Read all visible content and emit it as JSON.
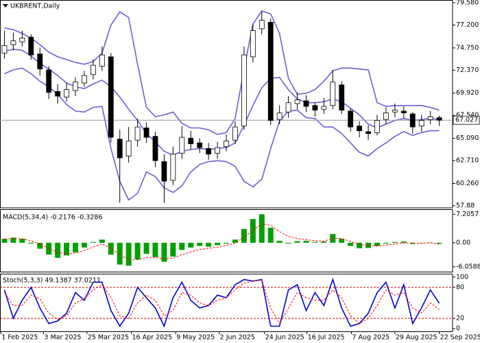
{
  "chart_data": [
    {
      "type": "candlestick",
      "title": "UKBRENT,Daily",
      "open": [
        74.2,
        75.1,
        75.4,
        75.9,
        74.1,
        72.4,
        70.1,
        69.5,
        70.2,
        71.0,
        71.9,
        72.8,
        73.8,
        65.0,
        63.2,
        64.9,
        66.2,
        65.3,
        62.6,
        60.6,
        63.5,
        65.1,
        64.6,
        64.0,
        63.5,
        64.2,
        64.9,
        66.4,
        73.8,
        76.8,
        77.5,
        67.1,
        67.9,
        68.8,
        69.1,
        68.6,
        68.2,
        68.6,
        70.8,
        68.0,
        66.4,
        65.8,
        65.7,
        67.1,
        67.9,
        68.0,
        67.7,
        66.4,
        67.1,
        67.3
      ],
      "high": [
        76.6,
        76.4,
        76.6,
        76.2,
        74.8,
        72.8,
        70.9,
        71.0,
        71.6,
        72.3,
        73.5,
        74.9,
        74.2,
        66.0,
        66.3,
        67.2,
        66.8,
        65.8,
        63.4,
        64.2,
        66.4,
        65.9,
        65.1,
        64.6,
        64.7,
        65.5,
        66.9,
        74.9,
        77.3,
        78.6,
        77.9,
        68.6,
        69.6,
        70.0,
        69.7,
        68.9,
        69.4,
        72.4,
        71.2,
        68.3,
        66.9,
        66.5,
        67.6,
        68.4,
        68.8,
        68.5,
        67.9,
        67.6,
        68.0,
        67.5
      ],
      "low": [
        73.6,
        74.5,
        74.9,
        73.5,
        71.8,
        69.3,
        68.8,
        69.0,
        69.6,
        70.6,
        71.4,
        72.3,
        64.6,
        58.2,
        62.5,
        64.2,
        64.6,
        62.0,
        58.2,
        60.1,
        62.9,
        63.9,
        63.5,
        62.8,
        62.9,
        63.7,
        64.5,
        66.0,
        73.2,
        76.2,
        66.5,
        66.6,
        67.3,
        68.2,
        67.9,
        67.4,
        67.7,
        68.2,
        67.7,
        65.8,
        65.2,
        64.9,
        65.4,
        66.6,
        67.3,
        67.2,
        65.6,
        65.8,
        66.6,
        66.4
      ],
      "close": [
        75.0,
        75.5,
        75.8,
        74.0,
        72.5,
        70.0,
        69.6,
        70.3,
        71.1,
        71.8,
        72.9,
        74.0,
        65.2,
        63.0,
        64.8,
        66.3,
        65.2,
        62.7,
        60.5,
        63.4,
        65.2,
        64.5,
        64.1,
        63.4,
        64.1,
        64.8,
        66.3,
        74.0,
        76.6,
        77.7,
        67.0,
        67.8,
        68.9,
        69.2,
        68.5,
        68.1,
        68.5,
        71.1,
        68.1,
        66.3,
        65.9,
        65.6,
        67.0,
        67.8,
        68.1,
        67.8,
        66.3,
        67.0,
        67.4,
        67.027
      ],
      "bands": [
        {
          "color": "#6a5fd6",
          "values": [
            76.9,
            76.7,
            76.3,
            75.8,
            75.1,
            74.3,
            73.8,
            73.5,
            73.2,
            73.0,
            73.3,
            74.2,
            77.2,
            78.6,
            78.0,
            73.0,
            68.4,
            67.4,
            67.6,
            67.9,
            66.7,
            66.2,
            66.2,
            66.0,
            65.5,
            65.7,
            67.2,
            72.5,
            77.3,
            78.7,
            78.4,
            76.3,
            71.5,
            69.8,
            69.9,
            70.3,
            71.2,
            72.3,
            72.6,
            72.6,
            72.5,
            72.4,
            68.9,
            68.5,
            68.6,
            68.6,
            68.6,
            68.6,
            68.4,
            68.1
          ]
        },
        {
          "color": "#6a5fd6",
          "values": [
            74.4,
            74.6,
            74.5,
            73.9,
            73.1,
            72.5,
            71.8,
            71.0,
            70.6,
            70.4,
            70.9,
            71.3,
            70.6,
            69.5,
            68.2,
            67.0,
            65.6,
            64.7,
            63.7,
            63.3,
            63.7,
            63.9,
            64.0,
            63.9,
            64.0,
            64.1,
            64.6,
            66.5,
            68.6,
            70.5,
            71.5,
            71.6,
            70.3,
            69.3,
            68.9,
            68.9,
            69.0,
            69.3,
            69.0,
            68.3,
            67.6,
            66.6,
            66.2,
            66.6,
            67.0,
            67.2,
            67.0,
            67.1,
            67.2,
            67.1
          ]
        },
        {
          "color": "#6a5fd6",
          "values": [
            72.0,
            72.4,
            72.6,
            72.0,
            71.2,
            70.6,
            69.8,
            68.7,
            68.0,
            67.9,
            68.4,
            68.5,
            64.0,
            60.5,
            58.5,
            59.2,
            61.5,
            61.0,
            59.8,
            59.3,
            60.0,
            61.5,
            62.3,
            62.6,
            62.7,
            62.6,
            62.1,
            60.5,
            59.9,
            60.7,
            64.0,
            66.9,
            68.0,
            68.1,
            67.3,
            67.2,
            66.3,
            66.3,
            65.6,
            64.6,
            63.6,
            63.2,
            64.0,
            64.6,
            65.3,
            65.8,
            65.4,
            65.7,
            65.9,
            65.9
          ]
        }
      ],
      "current_price": 67.027,
      "ylim": [
        57.73,
        79.8
      ],
      "yticks": [
        {
          "value": 79.58,
          "label": "79.580"
        },
        {
          "value": 77.2,
          "label": "77.200"
        },
        {
          "value": 74.75,
          "label": "74.750"
        },
        {
          "value": 72.37,
          "label": "72.370"
        },
        {
          "value": 69.92,
          "label": "69.920"
        },
        {
          "value": 67.54,
          "label": "67.540"
        },
        {
          "value": 65.09,
          "label": "65.090"
        },
        {
          "value": 62.71,
          "label": "62.710"
        },
        {
          "value": 60.26,
          "label": "60.260"
        },
        57.88
      ],
      "xlim": [
        -0.5,
        50.5
      ],
      "xticks": [
        {
          "value": -0.4,
          "label": "1 Feb 2025"
        },
        {
          "value": 4.4,
          "label": "3 Mar 2025"
        },
        {
          "value": 9.3,
          "label": "25 Mar 2025"
        },
        {
          "value": 14.3,
          "label": "16 Apr 2025"
        },
        {
          "value": 19.3,
          "label": "9 May 2025"
        },
        {
          "value": 24.2,
          "label": "2 Jun 2025"
        },
        {
          "value": 29.3,
          "label": "24 Jun 2025"
        },
        {
          "value": 34.1,
          "label": "16 Jul 2025"
        },
        {
          "value": 39.1,
          "label": "7 Aug 2025"
        },
        {
          "value": 44.0,
          "label": "29 Aug 2025"
        },
        {
          "value": 49.0,
          "label": "22 Sep 2025"
        }
      ]
    },
    {
      "type": "bar",
      "title": "MACD(5,34,4) -0.2176 -0.3286",
      "color": "#00a000",
      "values": [
        1.0,
        1.3,
        1.0,
        -0.2,
        -1.5,
        -3.0,
        -3.8,
        -3.2,
        -2.4,
        -1.2,
        0.2,
        0.8,
        -3.0,
        -5.5,
        -5.8,
        -4.2,
        -2.8,
        -3.6,
        -4.8,
        -3.5,
        -1.8,
        -1.2,
        -0.8,
        -1.0,
        -0.6,
        -0.2,
        0.8,
        3.5,
        6.0,
        7.2,
        3.8,
        0.5,
        -0.2,
        0.4,
        0.5,
        0.2,
        0.3,
        2.2,
        1.0,
        -0.8,
        -1.4,
        -1.3,
        -0.8,
        -0.2,
        0.2,
        0.3,
        -0.3,
        -0.1,
        0.1,
        -0.2176
      ],
      "line": {
        "color": "#ff0000",
        "dashed": true,
        "values": [
          0.9,
          1.1,
          1.0,
          0.5,
          -0.3,
          -1.4,
          -2.4,
          -2.8,
          -2.6,
          -2.0,
          -1.1,
          -0.3,
          -1.4,
          -3.0,
          -4.3,
          -4.3,
          -3.7,
          -3.7,
          -4.1,
          -3.9,
          -3.0,
          -2.3,
          -1.7,
          -1.4,
          -1.1,
          -0.7,
          -0.1,
          1.4,
          3.2,
          4.8,
          4.4,
          2.8,
          1.6,
          1.1,
          0.8,
          0.5,
          0.4,
          1.1,
          1.1,
          0.3,
          -0.4,
          -0.8,
          -0.8,
          -0.6,
          -0.3,
          0.0,
          -0.1,
          -0.1,
          0.0,
          -0.3286
        ]
      },
      "ylim": [
        -7.3,
        8.3
      ],
      "yticks": [
        7.2057,
        {
          "value": 0,
          "label": "0.00"
        },
        -6.0588
      ]
    },
    {
      "type": "line",
      "title": "Stoch(5,3,3) 49.1387 37.0211",
      "series": [
        {
          "color": "#0000cc",
          "values": [
            75,
            20,
            55,
            80,
            40,
            10,
            15,
            30,
            70,
            55,
            90,
            90,
            35,
            5,
            30,
            80,
            60,
            40,
            5,
            60,
            90,
            55,
            40,
            45,
            65,
            60,
            85,
            95,
            92,
            95,
            5,
            5,
            75,
            85,
            35,
            70,
            45,
            95,
            40,
            5,
            10,
            30,
            70,
            90,
            40,
            85,
            10,
            40,
            75,
            49.1387
          ]
        },
        {
          "color": "#ff0000",
          "dashed": true,
          "values": [
            70,
            45,
            45,
            65,
            58,
            30,
            18,
            25,
            50,
            58,
            75,
            85,
            60,
            25,
            20,
            50,
            65,
            55,
            25,
            35,
            70,
            65,
            50,
            45,
            55,
            60,
            75,
            88,
            92,
            94,
            40,
            10,
            40,
            70,
            60,
            55,
            55,
            75,
            60,
            25,
            10,
            20,
            45,
            75,
            65,
            70,
            40,
            30,
            50,
            37.0211
          ]
        }
      ],
      "levels": [
        80,
        20
      ],
      "ylim": [
        -5,
        105
      ],
      "yticks": [
        100,
        80,
        20,
        0
      ]
    }
  ]
}
